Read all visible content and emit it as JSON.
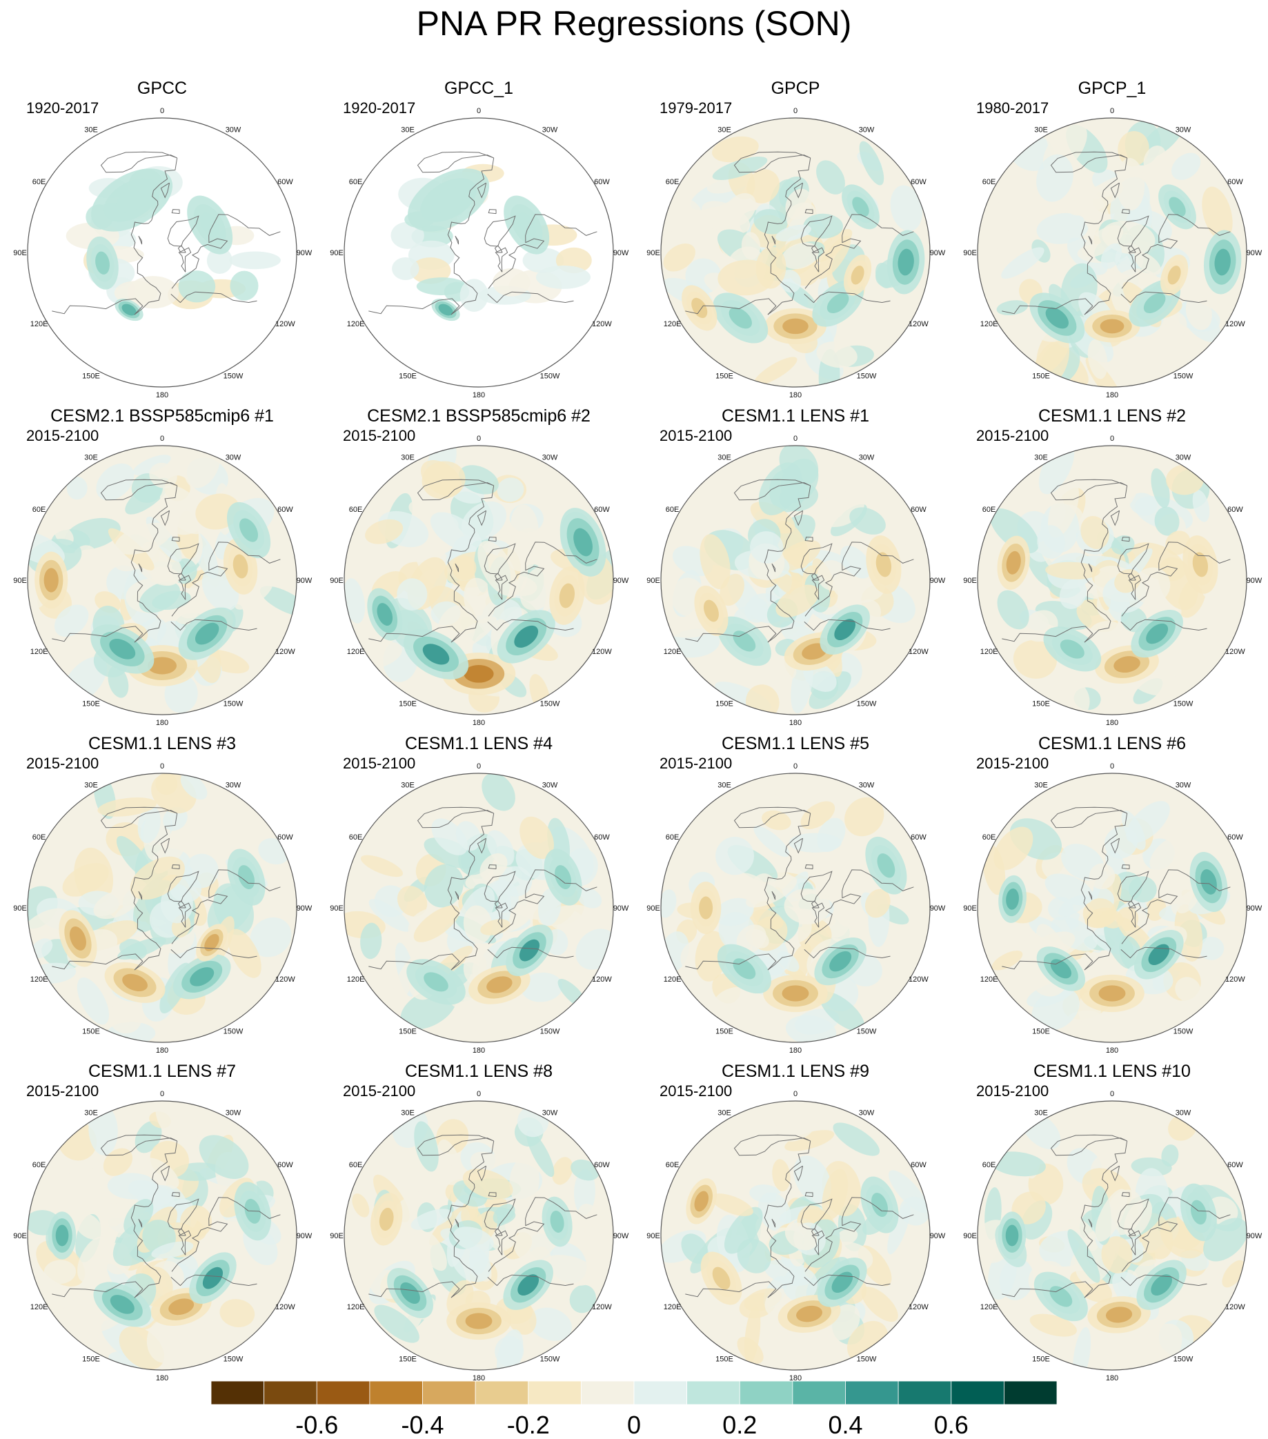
{
  "title": "PNA PR Regressions (SON)",
  "colors": {
    "levels": [
      "#543005",
      "#7a4a0f",
      "#9a5a14",
      "#bf812d",
      "#d7a85e",
      "#e8cc8f",
      "#f6e8c3",
      "#f4f1e4",
      "#e3f1ef",
      "#bfe6dd",
      "#8fd2c4",
      "#5ab4a6",
      "#35978f",
      "#17796f",
      "#015e54",
      "#003c30"
    ],
    "coast": "#6e6e6e",
    "outline": "#555555"
  },
  "chart_data": {
    "type": "polar-stereographic-contour-maps",
    "variable": "PR regression on PNA index",
    "season": "SON",
    "projection": "North polar stereographic",
    "longitude_labels": [
      "180",
      "150E",
      "120E",
      "90E",
      "60E",
      "30E",
      "0",
      "30W",
      "60W",
      "90W",
      "120W",
      "150W"
    ],
    "colorbar": {
      "levels": [
        -0.7,
        -0.6,
        -0.5,
        -0.4,
        -0.3,
        -0.2,
        -0.1,
        0,
        0.1,
        0.2,
        0.3,
        0.4,
        0.5,
        0.6,
        0.7
      ],
      "tick_labels": [
        "-0.6",
        "-0.4",
        "-0.2",
        "0",
        "0.2",
        "0.4",
        "0.6"
      ],
      "tick_values": [
        -0.6,
        -0.4,
        -0.2,
        0,
        0.2,
        0.4,
        0.6
      ]
    },
    "panels": [
      {
        "name": "GPCC",
        "years": "1920-2017",
        "land_only": true,
        "features": [
          {
            "lon": 150,
            "lat": 52,
            "value": 0.45,
            "r": 4
          },
          {
            "lon": -60,
            "lat": 58,
            "value": 0.2,
            "r": 10
          },
          {
            "lon": 100,
            "lat": 55,
            "value": 0.25,
            "r": 8
          },
          {
            "lon": 30,
            "lat": 55,
            "value": 0.1,
            "r": 14
          }
        ]
      },
      {
        "name": "GPCC_1",
        "years": "1920-2017",
        "land_only": true,
        "features": [
          {
            "lon": 150,
            "lat": 52,
            "value": 0.45,
            "r": 4
          },
          {
            "lon": -60,
            "lat": 58,
            "value": 0.15,
            "r": 10
          },
          {
            "lon": 30,
            "lat": 55,
            "value": 0.1,
            "r": 14
          }
        ]
      },
      {
        "name": "GPCP",
        "years": "1979-2017",
        "land_only": false,
        "features": [
          {
            "lon": 180,
            "lat": 48,
            "value": -0.4,
            "r": 9
          },
          {
            "lon": 140,
            "lat": 42,
            "value": 0.35,
            "r": 9
          },
          {
            "lon": -140,
            "lat": 52,
            "value": 0.35,
            "r": 9
          },
          {
            "lon": -95,
            "lat": 30,
            "value": 0.4,
            "r": 8
          },
          {
            "lon": -55,
            "lat": 45,
            "value": 0.3,
            "r": 7
          },
          {
            "lon": 120,
            "lat": 30,
            "value": -0.3,
            "r": 6
          },
          {
            "lon": -110,
            "lat": 52,
            "value": -0.25,
            "r": 6
          }
        ]
      },
      {
        "name": "GPCP_1",
        "years": "1980-2017",
        "land_only": false,
        "features": [
          {
            "lon": 180,
            "lat": 48,
            "value": -0.45,
            "r": 8
          },
          {
            "lon": 140,
            "lat": 42,
            "value": 0.4,
            "r": 9
          },
          {
            "lon": -140,
            "lat": 52,
            "value": 0.35,
            "r": 9
          },
          {
            "lon": -95,
            "lat": 30,
            "value": 0.45,
            "r": 8
          },
          {
            "lon": -55,
            "lat": 45,
            "value": 0.35,
            "r": 7
          },
          {
            "lon": -110,
            "lat": 52,
            "value": -0.25,
            "r": 6
          }
        ]
      },
      {
        "name": "CESM2.1 BSSP585cmip6 #1",
        "years": "2015-2100",
        "land_only": false,
        "features": [
          {
            "lon": 180,
            "lat": 42,
            "value": -0.5,
            "r": 10
          },
          {
            "lon": 150,
            "lat": 45,
            "value": 0.5,
            "r": 10
          },
          {
            "lon": -140,
            "lat": 50,
            "value": 0.5,
            "r": 10
          },
          {
            "lon": 90,
            "lat": 30,
            "value": -0.4,
            "r": 7
          },
          {
            "lon": -80,
            "lat": 45,
            "value": -0.3,
            "r": 8
          },
          {
            "lon": -60,
            "lat": 35,
            "value": 0.3,
            "r": 8
          }
        ]
      },
      {
        "name": "CESM2.1 BSSP585cmip6 #2",
        "years": "2015-2100",
        "land_only": false,
        "features": [
          {
            "lon": 180,
            "lat": 38,
            "value": -0.65,
            "r": 10
          },
          {
            "lon": 150,
            "lat": 42,
            "value": 0.55,
            "r": 10
          },
          {
            "lon": -140,
            "lat": 48,
            "value": 0.55,
            "r": 10
          },
          {
            "lon": -70,
            "lat": 30,
            "value": 0.5,
            "r": 9
          },
          {
            "lon": -100,
            "lat": 40,
            "value": -0.35,
            "r": 8
          },
          {
            "lon": 110,
            "lat": 35,
            "value": 0.4,
            "r": 7
          }
        ]
      },
      {
        "name": "CESM1.1 LENS #1",
        "years": "2015-2100",
        "land_only": false,
        "features": [
          {
            "lon": -165,
            "lat": 48,
            "value": -0.45,
            "r": 9
          },
          {
            "lon": -135,
            "lat": 50,
            "value": 0.55,
            "r": 9
          },
          {
            "lon": 140,
            "lat": 45,
            "value": 0.3,
            "r": 9
          },
          {
            "lon": 110,
            "lat": 40,
            "value": -0.3,
            "r": 7
          },
          {
            "lon": -80,
            "lat": 40,
            "value": -0.25,
            "r": 8
          }
        ]
      },
      {
        "name": "CESM1.1 LENS #2",
        "years": "2015-2100",
        "land_only": false,
        "features": [
          {
            "lon": -170,
            "lat": 42,
            "value": -0.45,
            "r": 9
          },
          {
            "lon": -140,
            "lat": 50,
            "value": 0.45,
            "r": 9
          },
          {
            "lon": 150,
            "lat": 45,
            "value": 0.35,
            "r": 9
          },
          {
            "lon": 80,
            "lat": 35,
            "value": -0.4,
            "r": 7
          },
          {
            "lon": -80,
            "lat": 40,
            "value": -0.3,
            "r": 8
          }
        ]
      },
      {
        "name": "CESM1.1 LENS #3",
        "years": "2015-2100",
        "land_only": false,
        "features": [
          {
            "lon": 160,
            "lat": 45,
            "value": -0.45,
            "r": 9
          },
          {
            "lon": -150,
            "lat": 45,
            "value": 0.4,
            "r": 9
          },
          {
            "lon": 110,
            "lat": 40,
            "value": -0.45,
            "r": 8
          },
          {
            "lon": -125,
            "lat": 55,
            "value": -0.5,
            "r": 6
          },
          {
            "lon": -70,
            "lat": 40,
            "value": 0.3,
            "r": 8
          }
        ]
      },
      {
        "name": "CESM1.1 LENS #4",
        "years": "2015-2100",
        "land_only": false,
        "features": [
          {
            "lon": -165,
            "lat": 45,
            "value": -0.45,
            "r": 9
          },
          {
            "lon": -130,
            "lat": 52,
            "value": 0.6,
            "r": 9
          },
          {
            "lon": 150,
            "lat": 42,
            "value": 0.35,
            "r": 9
          },
          {
            "lon": -70,
            "lat": 40,
            "value": 0.3,
            "r": 8
          }
        ]
      },
      {
        "name": "CESM1.1 LENS #5",
        "years": "2015-2100",
        "land_only": false,
        "features": [
          {
            "lon": 180,
            "lat": 42,
            "value": -0.5,
            "r": 9
          },
          {
            "lon": -140,
            "lat": 50,
            "value": 0.5,
            "r": 9
          },
          {
            "lon": 140,
            "lat": 45,
            "value": 0.35,
            "r": 9
          },
          {
            "lon": -65,
            "lat": 35,
            "value": 0.3,
            "r": 8
          },
          {
            "lon": 90,
            "lat": 40,
            "value": -0.3,
            "r": 7
          }
        ]
      },
      {
        "name": "CESM1.1 LENS #6",
        "years": "2015-2100",
        "land_only": false,
        "features": [
          {
            "lon": 180,
            "lat": 42,
            "value": -0.5,
            "r": 9
          },
          {
            "lon": -135,
            "lat": 52,
            "value": 0.6,
            "r": 9
          },
          {
            "lon": 140,
            "lat": 45,
            "value": 0.4,
            "r": 8
          },
          {
            "lon": 85,
            "lat": 35,
            "value": 0.45,
            "r": 6
          },
          {
            "lon": -75,
            "lat": 35,
            "value": 0.5,
            "r": 8
          }
        ]
      },
      {
        "name": "CESM1.1 LENS #7",
        "years": "2015-2100",
        "land_only": false,
        "features": [
          {
            "lon": -165,
            "lat": 48,
            "value": -0.45,
            "r": 9
          },
          {
            "lon": -130,
            "lat": 52,
            "value": 0.55,
            "r": 9
          },
          {
            "lon": 150,
            "lat": 45,
            "value": 0.4,
            "r": 9
          },
          {
            "lon": 90,
            "lat": 35,
            "value": 0.4,
            "r": 6
          },
          {
            "lon": -75,
            "lat": 38,
            "value": 0.25,
            "r": 8
          }
        ]
      },
      {
        "name": "CESM1.1 LENS #8",
        "years": "2015-2100",
        "land_only": false,
        "features": [
          {
            "lon": 180,
            "lat": 42,
            "value": -0.5,
            "r": 9
          },
          {
            "lon": -135,
            "lat": 50,
            "value": 0.6,
            "r": 9
          },
          {
            "lon": 130,
            "lat": 40,
            "value": 0.45,
            "r": 8
          },
          {
            "lon": 80,
            "lat": 38,
            "value": -0.35,
            "r": 7
          },
          {
            "lon": -80,
            "lat": 45,
            "value": 0.3,
            "r": 7
          }
        ]
      },
      {
        "name": "CESM1.1 LENS #9",
        "years": "2015-2100",
        "land_only": false,
        "features": [
          {
            "lon": -170,
            "lat": 45,
            "value": -0.45,
            "r": 9
          },
          {
            "lon": -135,
            "lat": 52,
            "value": 0.45,
            "r": 9
          },
          {
            "lon": 120,
            "lat": 42,
            "value": -0.35,
            "r": 8
          },
          {
            "lon": 70,
            "lat": 35,
            "value": -0.45,
            "r": 6
          },
          {
            "lon": -70,
            "lat": 40,
            "value": 0.25,
            "r": 8
          }
        ]
      },
      {
        "name": "CESM1.1 LENS #10",
        "years": "2015-2100",
        "land_only": false,
        "features": [
          {
            "lon": -175,
            "lat": 45,
            "value": -0.45,
            "r": 9
          },
          {
            "lon": -135,
            "lat": 50,
            "value": 0.45,
            "r": 9
          },
          {
            "lon": 140,
            "lat": 45,
            "value": 0.35,
            "r": 9
          },
          {
            "lon": 90,
            "lat": 35,
            "value": 0.4,
            "r": 6
          },
          {
            "lon": -75,
            "lat": 40,
            "value": 0.25,
            "r": 8
          }
        ]
      }
    ]
  }
}
